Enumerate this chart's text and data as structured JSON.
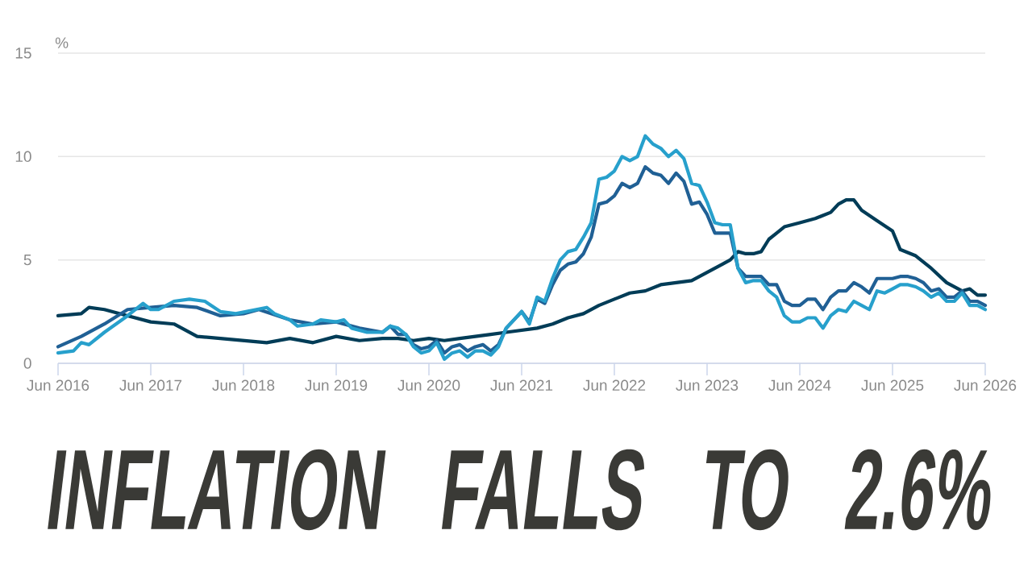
{
  "chart_data": {
    "type": "line",
    "title": "INFLATION FALLS TO 2.6%",
    "ylabel": "%",
    "xlim": [
      "2016-06",
      "2026-06"
    ],
    "ylim": [
      0,
      15
    ],
    "yticks": [
      0,
      5,
      10,
      15
    ],
    "xticks": [
      {
        "value": "2016-06",
        "label": "Jun 2016"
      },
      {
        "value": "2017-06",
        "label": "Jun 2017"
      },
      {
        "value": "2018-06",
        "label": "Jun 2018"
      },
      {
        "value": "2019-06",
        "label": "Jun 2019"
      },
      {
        "value": "2020-06",
        "label": "Jun 2020"
      },
      {
        "value": "2021-06",
        "label": "Jun 2021"
      },
      {
        "value": "2022-06",
        "label": "Jun 2022"
      },
      {
        "value": "2023-06",
        "label": "Jun 2023"
      },
      {
        "value": "2024-06",
        "label": "Jun 2024"
      },
      {
        "value": "2025-06",
        "label": "Jun 2025"
      },
      {
        "value": "2026-06",
        "label": "Jun 2026"
      }
    ],
    "grid": "y",
    "series": [
      {
        "color": "#003c57",
        "x": [
          "2016-06",
          "2016-09",
          "2016-10",
          "2016-12",
          "2017-03",
          "2017-06",
          "2017-09",
          "2017-12",
          "2018-03",
          "2018-06",
          "2018-09",
          "2018-12",
          "2019-03",
          "2019-06",
          "2019-09",
          "2019-12",
          "2020-02",
          "2020-04",
          "2020-06",
          "2020-08",
          "2020-10",
          "2020-12",
          "2021-02",
          "2021-04",
          "2021-06",
          "2021-08",
          "2021-10",
          "2021-12",
          "2022-02",
          "2022-04",
          "2022-06",
          "2022-08",
          "2022-10",
          "2022-12",
          "2023-02",
          "2023-04",
          "2023-06",
          "2023-08",
          "2023-09",
          "2023-10",
          "2023-11",
          "2023-12",
          "2024-01",
          "2024-02",
          "2024-03",
          "2024-04",
          "2024-06",
          "2024-08",
          "2024-10",
          "2024-11",
          "2024-12",
          "2025-01",
          "2025-02",
          "2025-04",
          "2025-06",
          "2025-07",
          "2025-09",
          "2025-11",
          "2026-01",
          "2026-03",
          "2026-04",
          "2026-05",
          "2026-06"
        ],
        "values": [
          2.3,
          2.4,
          2.7,
          2.6,
          2.3,
          2.0,
          1.9,
          1.3,
          1.2,
          1.1,
          1.0,
          1.2,
          1.0,
          1.3,
          1.1,
          1.2,
          1.2,
          1.1,
          1.2,
          1.1,
          1.2,
          1.3,
          1.4,
          1.5,
          1.6,
          1.7,
          1.9,
          2.2,
          2.4,
          2.8,
          3.1,
          3.4,
          3.5,
          3.8,
          3.9,
          4.0,
          4.4,
          4.8,
          5.0,
          5.4,
          5.3,
          5.3,
          5.4,
          6.0,
          6.3,
          6.6,
          6.8,
          7.0,
          7.3,
          7.7,
          7.9,
          7.9,
          7.4,
          6.9,
          6.4,
          5.5,
          5.2,
          4.6,
          3.9,
          3.5,
          3.6,
          3.3,
          3.3
        ]
      },
      {
        "color": "#206095",
        "x": [
          "2016-06",
          "2016-09",
          "2016-12",
          "2017-03",
          "2017-06",
          "2017-09",
          "2017-12",
          "2018-03",
          "2018-06",
          "2018-08",
          "2018-12",
          "2019-03",
          "2019-06",
          "2019-09",
          "2019-12",
          "2020-01",
          "2020-02",
          "2020-03",
          "2020-04",
          "2020-05",
          "2020-06",
          "2020-07",
          "2020-08",
          "2020-09",
          "2020-10",
          "2020-11",
          "2020-12",
          "2021-01",
          "2021-02",
          "2021-03",
          "2021-04",
          "2021-05",
          "2021-06",
          "2021-07",
          "2021-08",
          "2021-09",
          "2021-10",
          "2021-11",
          "2021-12",
          "2022-01",
          "2022-02",
          "2022-03",
          "2022-04",
          "2022-05",
          "2022-06",
          "2022-07",
          "2022-08",
          "2022-09",
          "2022-10",
          "2022-11",
          "2022-12",
          "2023-01",
          "2023-02",
          "2023-03",
          "2023-04",
          "2023-05",
          "2023-06",
          "2023-07",
          "2023-08",
          "2023-09",
          "2023-10",
          "2023-11",
          "2023-12",
          "2024-01",
          "2024-02",
          "2024-03",
          "2024-04",
          "2024-05",
          "2024-06",
          "2024-07",
          "2024-08",
          "2024-09",
          "2024-10",
          "2024-11",
          "2024-12",
          "2025-01",
          "2025-02",
          "2025-03",
          "2025-04",
          "2025-05",
          "2025-06",
          "2025-07",
          "2025-08",
          "2025-09",
          "2025-10",
          "2025-11",
          "2025-12",
          "2026-01",
          "2026-02",
          "2026-03",
          "2026-04",
          "2026-05",
          "2026-06"
        ],
        "values": [
          0.8,
          1.3,
          1.9,
          2.6,
          2.7,
          2.8,
          2.7,
          2.3,
          2.4,
          2.6,
          2.1,
          1.9,
          2.0,
          1.7,
          1.5,
          1.8,
          1.4,
          1.4,
          0.9,
          0.7,
          0.8,
          1.1,
          0.5,
          0.8,
          0.9,
          0.6,
          0.8,
          0.9,
          0.6,
          0.9,
          1.7,
          2.1,
          2.5,
          2.0,
          3.1,
          2.9,
          3.8,
          4.5,
          4.8,
          4.9,
          5.3,
          6.1,
          7.7,
          7.8,
          8.1,
          8.7,
          8.5,
          8.7,
          9.5,
          9.2,
          9.1,
          8.7,
          9.2,
          8.8,
          7.7,
          7.8,
          7.2,
          6.3,
          6.3,
          6.3,
          4.6,
          4.2,
          4.2,
          4.2,
          3.8,
          3.8,
          3.0,
          2.8,
          2.8,
          3.1,
          3.1,
          2.6,
          3.2,
          3.5,
          3.5,
          3.9,
          3.7,
          3.4,
          4.1,
          4.1,
          4.1,
          4.2,
          4.2,
          4.1,
          3.9,
          3.5,
          3.6,
          3.2,
          3.2,
          3.5,
          3.0,
          3.0,
          2.8
        ]
      },
      {
        "color": "#27a0cc",
        "x": [
          "2016-06",
          "2016-08",
          "2016-09",
          "2016-10",
          "2016-12",
          "2017-03",
          "2017-05",
          "2017-06",
          "2017-07",
          "2017-09",
          "2017-11",
          "2018-01",
          "2018-03",
          "2018-05",
          "2018-09",
          "2018-10",
          "2018-12",
          "2019-01",
          "2019-03",
          "2019-04",
          "2019-06",
          "2019-07",
          "2019-08",
          "2019-10",
          "2019-12",
          "2020-01",
          "2020-02",
          "2020-03",
          "2020-04",
          "2020-05",
          "2020-06",
          "2020-07",
          "2020-08",
          "2020-09",
          "2020-10",
          "2020-11",
          "2020-12",
          "2021-01",
          "2021-02",
          "2021-03",
          "2021-04",
          "2021-05",
          "2021-06",
          "2021-07",
          "2021-08",
          "2021-09",
          "2021-10",
          "2021-11",
          "2021-12",
          "2022-01",
          "2022-02",
          "2022-03",
          "2022-04",
          "2022-05",
          "2022-06",
          "2022-07",
          "2022-08",
          "2022-09",
          "2022-10",
          "2022-11",
          "2022-12",
          "2023-01",
          "2023-02",
          "2023-03",
          "2023-04",
          "2023-05",
          "2023-06",
          "2023-07",
          "2023-08",
          "2023-09",
          "2023-10",
          "2023-11",
          "2023-12",
          "2024-01",
          "2024-02",
          "2024-03",
          "2024-04",
          "2024-05",
          "2024-06",
          "2024-07",
          "2024-08",
          "2024-09",
          "2024-10",
          "2024-11",
          "2024-12",
          "2025-01",
          "2025-02",
          "2025-03",
          "2025-04",
          "2025-05",
          "2025-06",
          "2025-07",
          "2025-08",
          "2025-09",
          "2025-10",
          "2025-11",
          "2025-12",
          "2026-01",
          "2026-02",
          "2026-03",
          "2026-04",
          "2026-05",
          "2026-06"
        ],
        "values": [
          0.5,
          0.6,
          1.0,
          0.9,
          1.5,
          2.3,
          2.9,
          2.6,
          2.6,
          3.0,
          3.1,
          3.0,
          2.5,
          2.4,
          2.7,
          2.4,
          2.1,
          1.8,
          1.9,
          2.1,
          2.0,
          2.1,
          1.7,
          1.5,
          1.5,
          1.8,
          1.7,
          1.4,
          0.8,
          0.5,
          0.6,
          1.0,
          0.2,
          0.5,
          0.6,
          0.3,
          0.6,
          0.6,
          0.4,
          0.8,
          1.7,
          2.1,
          2.5,
          1.9,
          3.2,
          3.0,
          4.1,
          5.0,
          5.4,
          5.5,
          6.1,
          6.8,
          8.9,
          9.0,
          9.3,
          10.0,
          9.8,
          10.0,
          11.0,
          10.6,
          10.4,
          10.0,
          10.3,
          9.9,
          8.7,
          8.6,
          7.8,
          6.8,
          6.7,
          6.7,
          4.6,
          3.9,
          4.0,
          4.0,
          3.5,
          3.2,
          2.3,
          2.0,
          2.0,
          2.2,
          2.2,
          1.7,
          2.3,
          2.6,
          2.5,
          3.0,
          2.8,
          2.6,
          3.5,
          3.4,
          3.6,
          3.8,
          3.8,
          3.7,
          3.5,
          3.2,
          3.4,
          3.0,
          3.0,
          3.4,
          2.8,
          2.8,
          2.6
        ]
      }
    ]
  }
}
